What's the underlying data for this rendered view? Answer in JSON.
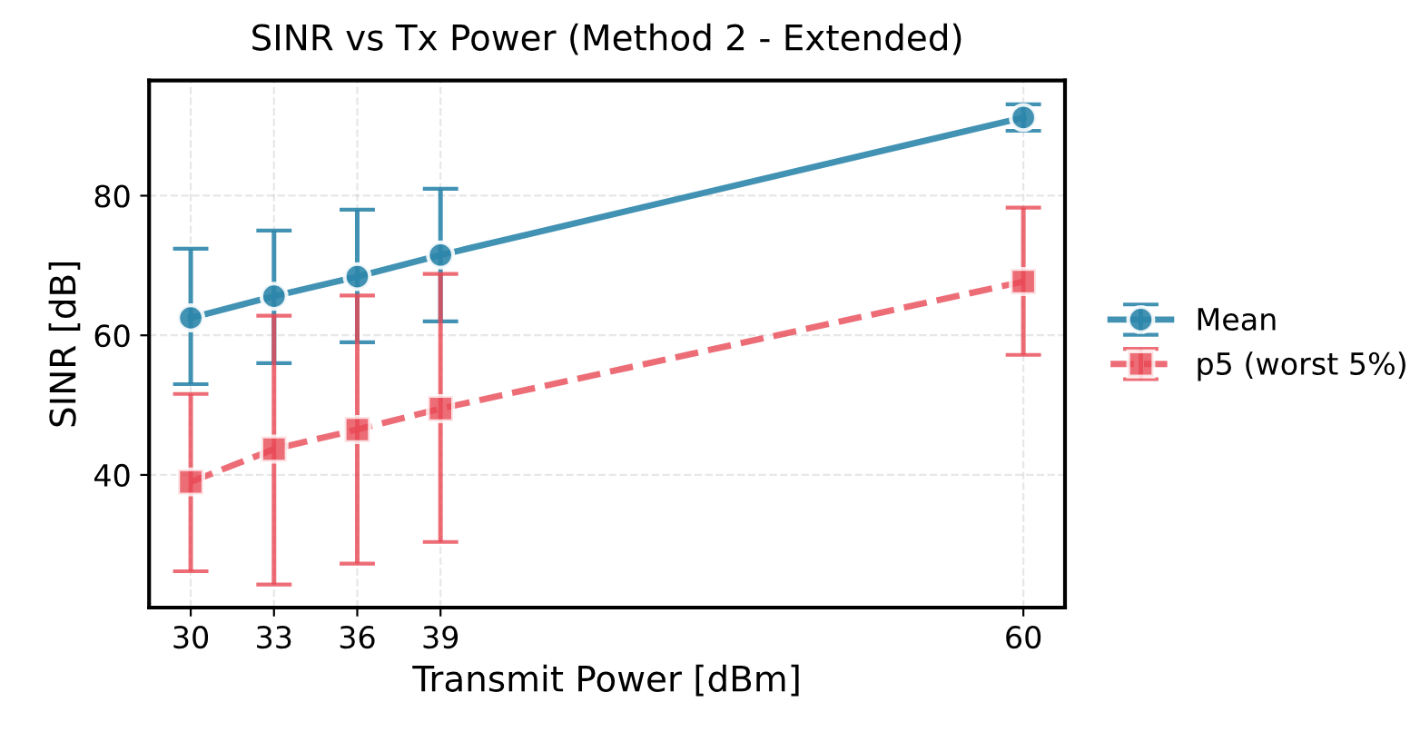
{
  "chart_data": {
    "type": "line",
    "title": "SINR vs Tx Power (Method 2 - Extended)",
    "xlabel": "Transmit Power [dBm]",
    "ylabel": "SINR [dB]",
    "x": [
      30,
      33,
      36,
      39,
      60
    ],
    "series": [
      {
        "name": "Mean",
        "color": "#2e86ab",
        "marker": "circle",
        "line_style": "solid",
        "values": [
          62.5,
          65.6,
          68.4,
          71.5,
          91.2
        ],
        "errors": [
          [
            53,
            72.4
          ],
          [
            56,
            75
          ],
          [
            59,
            78
          ],
          [
            62,
            81
          ],
          [
            89.3,
            93.1
          ]
        ]
      },
      {
        "name": "p5 (worst 5%)",
        "color": "#e84855",
        "marker": "square",
        "line_style": "dashed",
        "values": [
          39,
          43.7,
          46.5,
          49.5,
          67.7
        ],
        "errors": [
          [
            26.2,
            51.6
          ],
          [
            24.3,
            62.8
          ],
          [
            27.3,
            65.7
          ],
          [
            30.4,
            68.8
          ],
          [
            57.2,
            78.3
          ]
        ]
      }
    ],
    "xlim": [
      28.5,
      61.5
    ],
    "ylim": [
      21,
      96.5
    ],
    "xticks": [
      30,
      33,
      36,
      39,
      60
    ],
    "yticks": [
      40,
      60,
      80
    ],
    "grid": true,
    "legend": "right"
  }
}
